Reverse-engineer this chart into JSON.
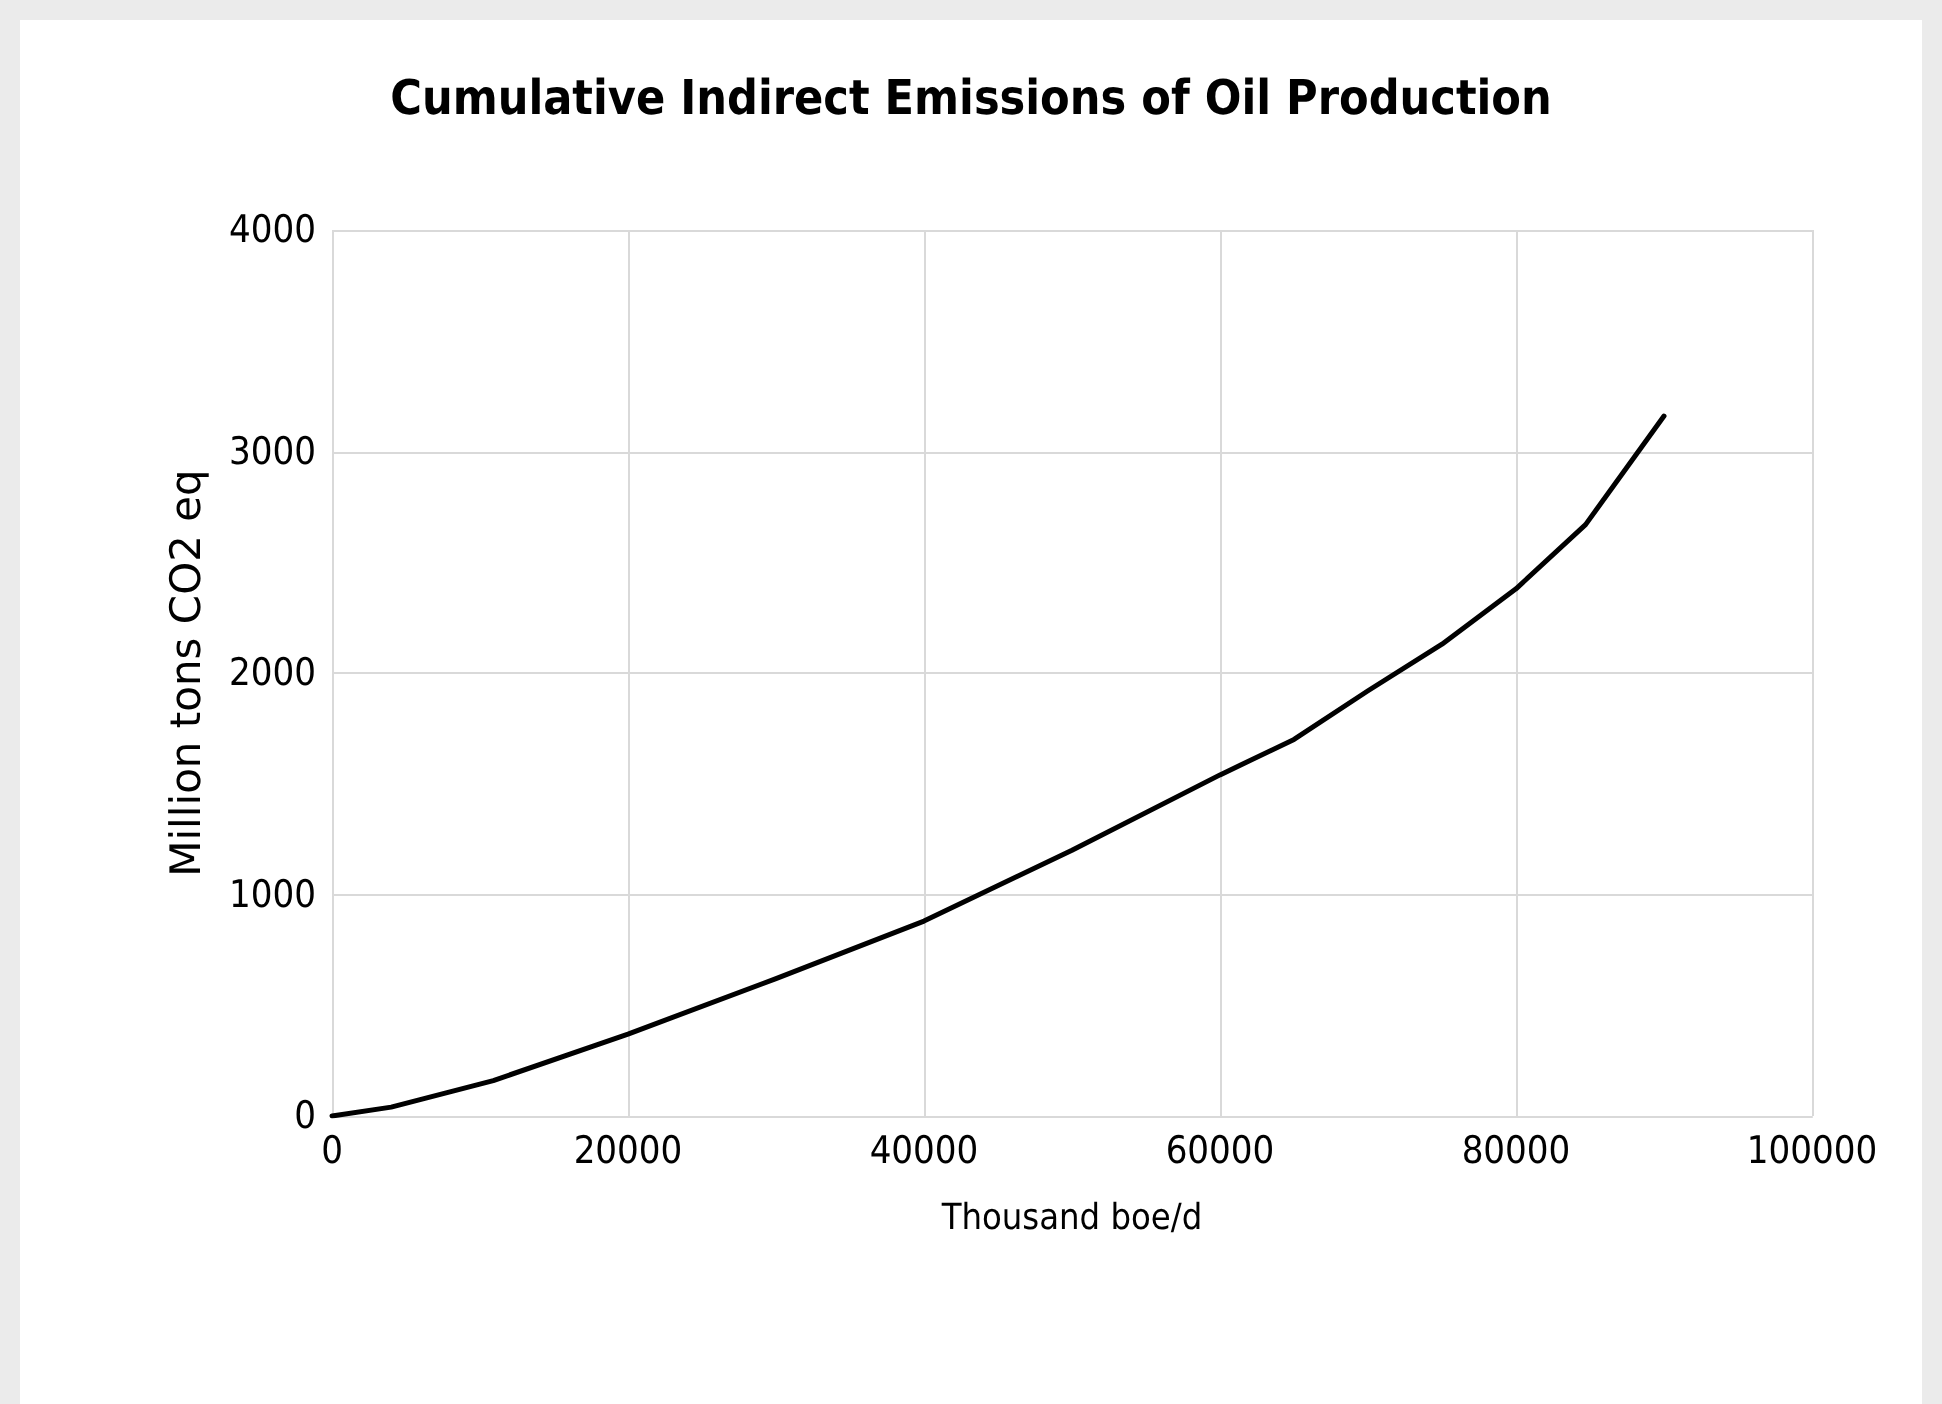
{
  "chart_data": {
    "type": "line",
    "title": "Cumulative Indirect Emissions of Oil Production",
    "xlabel": "Thousand boe/d",
    "ylabel": "Million tons CO2 eq",
    "series": [
      {
        "color": "#000000",
        "x": [
          0,
          4000,
          10900,
          20000,
          30000,
          40000,
          50000,
          60000,
          65000,
          70000,
          75000,
          80000,
          84700,
          90000
        ],
        "values": [
          0,
          40,
          160,
          370,
          620,
          880,
          1200,
          1540,
          1700,
          1920,
          2130,
          2380,
          2670,
          3160
        ]
      }
    ],
    "xlim": [
      0,
      100000
    ],
    "xticks": [
      0,
      20000,
      40000,
      60000,
      80000,
      100000
    ],
    "ylim": [
      0,
      4000
    ],
    "yticks": [
      0,
      1000,
      2000,
      3000,
      4000
    ],
    "grid": true,
    "marker": "none",
    "line_style": "solid"
  }
}
